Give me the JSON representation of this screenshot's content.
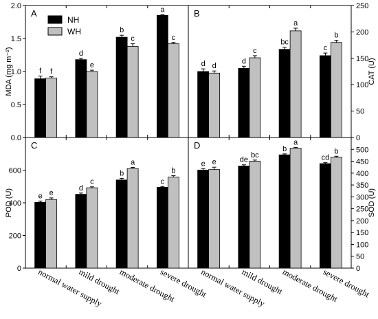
{
  "legend": [
    {
      "name": "NH",
      "color": "#000000"
    },
    {
      "name": "WH",
      "color": "#c0c0c0"
    }
  ],
  "categories": [
    "normal water supply",
    "mild drought",
    "moderate drought",
    "severe drought"
  ],
  "chart_data": [
    {
      "type": "bar",
      "panel": "A",
      "ylabel": "MDA (mg m⁻²)",
      "axis_side": "left",
      "ylim": [
        0,
        2.0
      ],
      "yticks": [
        "0.0",
        "0.5",
        "1.0",
        "1.5",
        "2.0"
      ],
      "series": [
        {
          "name": "NH",
          "values": [
            0.89,
            1.18,
            1.52,
            1.85
          ],
          "errors": [
            0.04,
            0.02,
            0.03,
            0.01
          ],
          "letters": [
            "f",
            "d",
            "b",
            "a"
          ]
        },
        {
          "name": "WH",
          "values": [
            0.9,
            1.0,
            1.38,
            1.42
          ],
          "errors": [
            0.02,
            0.02,
            0.04,
            0.02
          ],
          "letters": [
            "f",
            "e",
            "c",
            "c"
          ]
        }
      ]
    },
    {
      "type": "bar",
      "panel": "B",
      "ylabel": "CAT (U)",
      "axis_side": "right",
      "ylim": [
        0,
        250
      ],
      "yticks": [
        "0",
        "50",
        "100",
        "150",
        "200",
        "250"
      ],
      "series": [
        {
          "name": "NH",
          "values": [
            125,
            131,
            167,
            155
          ],
          "errors": [
            5,
            4,
            4,
            5
          ],
          "letters": [
            "d",
            "d",
            "bc",
            "c"
          ]
        },
        {
          "name": "WH",
          "values": [
            122,
            151,
            202,
            180
          ],
          "errors": [
            4,
            4,
            5,
            4
          ],
          "letters": [
            "d",
            "c",
            "a",
            "b"
          ]
        }
      ]
    },
    {
      "type": "bar",
      "panel": "C",
      "ylabel": "POD (U)",
      "axis_side": "left",
      "ylim": [
        0,
        800
      ],
      "yticks": [
        "0",
        "200",
        "400",
        "600"
      ],
      "series": [
        {
          "name": "NH",
          "values": [
            403,
            452,
            540,
            495
          ],
          "errors": [
            8,
            8,
            10,
            5
          ],
          "letters": [
            "e",
            "d",
            "b",
            "c"
          ]
        },
        {
          "name": "WH",
          "values": [
            420,
            492,
            610,
            558
          ],
          "errors": [
            10,
            6,
            7,
            8
          ],
          "letters": [
            "e",
            "c",
            "a",
            "b"
          ]
        }
      ]
    },
    {
      "type": "bar",
      "panel": "D",
      "ylabel": "SOD (U)",
      "axis_side": "right",
      "ylim": [
        0,
        550
      ],
      "yticks": [
        "0",
        "50",
        "100",
        "150",
        "200",
        "250",
        "300",
        "350",
        "400",
        "450",
        "500"
      ],
      "series": [
        {
          "name": "NH",
          "values": [
            413,
            430,
            477,
            440
          ],
          "errors": [
            6,
            5,
            4,
            4
          ],
          "letters": [
            "e",
            "de",
            "b",
            "cd"
          ]
        },
        {
          "name": "WH",
          "values": [
            415,
            450,
            505,
            467
          ],
          "errors": [
            10,
            5,
            3,
            4
          ],
          "letters": [
            "e",
            "bc",
            "a",
            "b"
          ]
        }
      ]
    }
  ]
}
